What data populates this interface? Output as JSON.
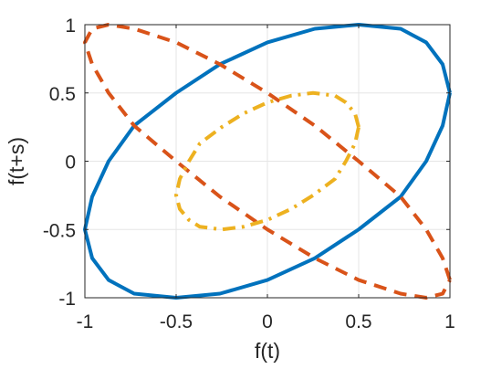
{
  "chart_data": {
    "type": "line",
    "xlabel": "f(t)",
    "ylabel": "f(t+s)",
    "xlim": [
      -1,
      1
    ],
    "ylim": [
      -1,
      1
    ],
    "xticks": [
      -1,
      -0.5,
      0,
      0.5,
      1
    ],
    "yticks": [
      -1,
      -0.5,
      0,
      0.5,
      1
    ],
    "xtick_labels": [
      "-1",
      "-0.5",
      "0",
      "0.5",
      "1"
    ],
    "ytick_labels": [
      "-1",
      "-0.5",
      "0",
      "0.5",
      "1"
    ],
    "grid": true,
    "legend": "none",
    "series": [
      {
        "style": "solid",
        "color": "#0072BD",
        "x": [
          1.0,
          0.96,
          0.87,
          0.73,
          0.5,
          0.26,
          0.0,
          -0.26,
          -0.5,
          -0.73,
          -0.87,
          -0.96,
          -1.0,
          -0.96,
          -0.87,
          -0.73,
          -0.5,
          -0.26,
          0.0,
          0.26,
          0.5,
          0.73,
          0.87,
          0.96,
          1.0
        ],
        "y": [
          0.5,
          0.71,
          0.87,
          0.97,
          1.0,
          0.97,
          0.87,
          0.71,
          0.5,
          0.26,
          0.0,
          -0.26,
          -0.5,
          -0.71,
          -0.87,
          -0.97,
          -1.0,
          -0.97,
          -0.87,
          -0.71,
          -0.5,
          -0.26,
          0.0,
          0.26,
          0.5
        ]
      },
      {
        "style": "dashed",
        "color": "#D95319",
        "x": [
          1.0,
          0.96,
          0.87,
          0.73,
          0.5,
          0.26,
          0.0,
          -0.26,
          -0.5,
          -0.73,
          -0.87,
          -0.96,
          -1.0,
          -0.96,
          -0.87,
          -0.73,
          -0.5,
          -0.26,
          0.0,
          0.26,
          0.5,
          0.73,
          0.87,
          0.96,
          1.0
        ],
        "y": [
          -0.87,
          -0.71,
          -0.5,
          -0.26,
          0.0,
          0.26,
          0.5,
          0.71,
          0.87,
          0.97,
          1.0,
          0.97,
          0.87,
          0.71,
          0.5,
          0.26,
          0.0,
          -0.26,
          -0.5,
          -0.71,
          -0.87,
          -0.97,
          -1.0,
          -0.97,
          -0.87
        ]
      },
      {
        "style": "dashdot",
        "color": "#EDB120",
        "x": [
          0.5,
          0.48,
          0.43,
          0.37,
          0.25,
          0.13,
          0.0,
          -0.13,
          -0.25,
          -0.37,
          -0.43,
          -0.48,
          -0.5,
          -0.48,
          -0.43,
          -0.37,
          -0.25,
          -0.13,
          0.0,
          0.13,
          0.25,
          0.37,
          0.43,
          0.48,
          0.5
        ],
        "y": [
          0.25,
          0.35,
          0.43,
          0.48,
          0.5,
          0.48,
          0.43,
          0.35,
          0.25,
          0.13,
          0.0,
          -0.13,
          -0.25,
          -0.35,
          -0.43,
          -0.48,
          -0.5,
          -0.48,
          -0.43,
          -0.35,
          -0.25,
          -0.13,
          0.0,
          0.13,
          0.25
        ]
      }
    ]
  }
}
